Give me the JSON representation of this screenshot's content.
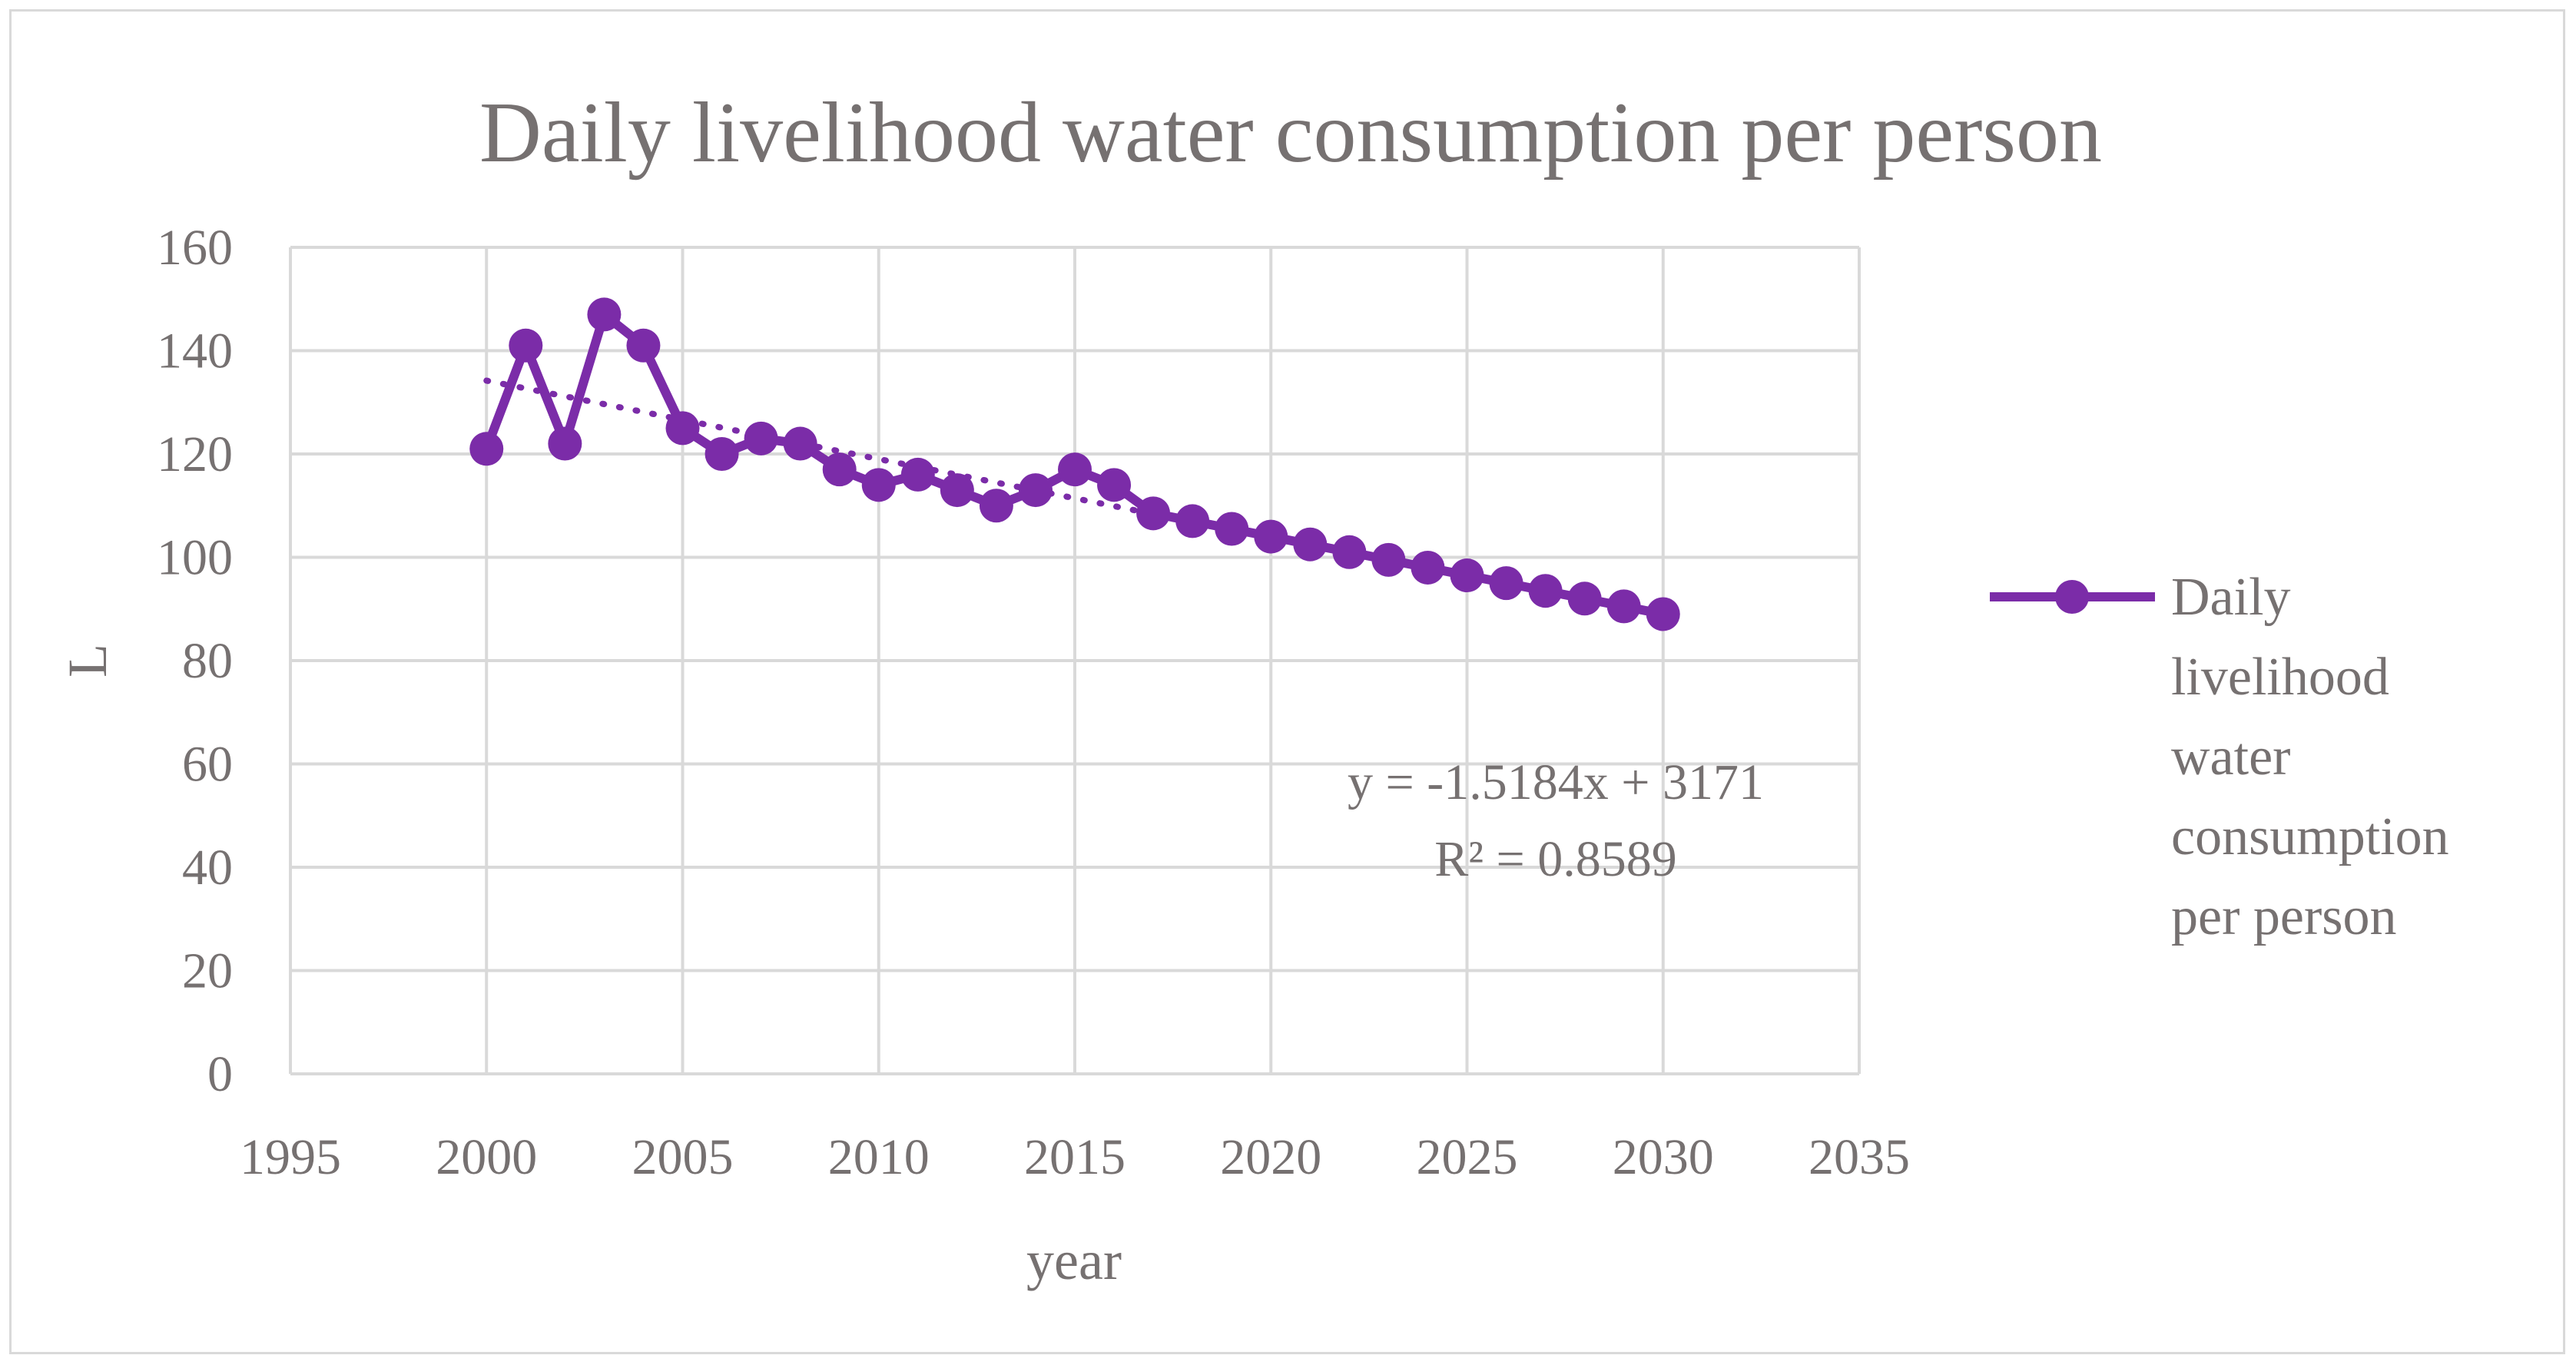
{
  "chart_data": {
    "type": "line",
    "title": "Daily livelihood water consumption per person",
    "xlabel": "year",
    "ylabel": "L",
    "xlim": [
      1995,
      2035
    ],
    "ylim": [
      0,
      160
    ],
    "x_ticks": [
      1995,
      2000,
      2005,
      2010,
      2015,
      2020,
      2025,
      2030,
      2035
    ],
    "y_ticks": [
      0,
      20,
      40,
      60,
      80,
      100,
      120,
      140,
      160
    ],
    "grid": true,
    "legend_position": "right",
    "series": [
      {
        "name": "Daily livelihood water consumption per person",
        "legend_lines": [
          "Daily",
          "livelihood",
          "water",
          "consumption",
          "per person"
        ],
        "color": "#7B2CA8",
        "x": [
          2000,
          2001,
          2002,
          2003,
          2004,
          2005,
          2006,
          2007,
          2008,
          2009,
          2010,
          2011,
          2012,
          2013,
          2014,
          2015,
          2016,
          2017,
          2018,
          2019,
          2020,
          2021,
          2022,
          2023,
          2024,
          2025,
          2026,
          2027,
          2028,
          2029,
          2030
        ],
        "values": [
          121,
          141,
          122,
          147,
          141,
          125,
          120,
          123,
          122,
          117,
          114,
          116,
          113,
          110,
          113,
          117,
          114,
          108.5,
          107,
          105.5,
          104,
          102.5,
          101,
          99.5,
          98,
          96.5,
          95,
          93.5,
          92,
          90.5,
          89
        ]
      }
    ],
    "trendline": {
      "type": "linear",
      "slope": -1.5184,
      "intercept": 3171,
      "x_range": [
        2000,
        2017
      ],
      "style": "dotted",
      "equation_text": "y = -1.5184x + 3171",
      "r2_text": "R² = 0.8589"
    }
  }
}
